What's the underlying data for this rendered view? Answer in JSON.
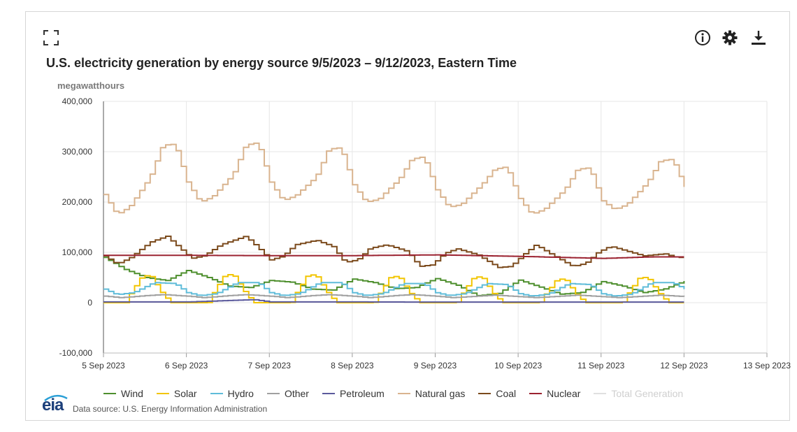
{
  "header": {
    "title": "U.S. electricity generation by energy source 9/5/2023 – 9/12/2023, Eastern Time",
    "units": "megawatthours",
    "icons": [
      "expand-icon",
      "info-icon",
      "gear-icon",
      "download-icon"
    ]
  },
  "footer": {
    "logo_text": "eia",
    "source": "Data source: U.S. Energy Information Administration"
  },
  "chart_data": {
    "type": "line",
    "step": true,
    "xlabel": "",
    "ylabel": "megawatthours",
    "ylim": [
      -100000,
      400000
    ],
    "yticks": [
      -100000,
      0,
      100000,
      200000,
      300000,
      400000
    ],
    "ytick_labels": [
      "-100,000",
      "0",
      "100,000",
      "200,000",
      "300,000",
      "400,000"
    ],
    "xlim_days": [
      0,
      8
    ],
    "xtick_labels": [
      "5 Sep 2023",
      "6 Sep 2023",
      "7 Sep 2023",
      "8 Sep 2023",
      "9 Sep 2023",
      "10 Sep 2023",
      "11 Sep 2023",
      "12 Sep 2023",
      "13 Sep 2023"
    ],
    "grid": true,
    "legend_position": "bottom",
    "series": [
      {
        "name": "Wind",
        "color": "#4e8f2e",
        "visible": true,
        "x": [
          0,
          0.25,
          0.5,
          0.75,
          1,
          1.25,
          1.5,
          1.75,
          2,
          2.25,
          2.5,
          2.75,
          3,
          3.25,
          3.5,
          3.75,
          4,
          4.25,
          4.5,
          4.75,
          5,
          5.25,
          5.5,
          5.75,
          6,
          6.25,
          6.5,
          6.75,
          7
        ],
        "y": [
          90000,
          66000,
          50000,
          44000,
          64000,
          50000,
          33000,
          30000,
          44000,
          41000,
          27000,
          25000,
          47000,
          40000,
          28000,
          30000,
          48000,
          35000,
          14000,
          18000,
          45000,
          31000,
          17000,
          20000,
          42000,
          33000,
          20000,
          27000,
          43000
        ]
      },
      {
        "name": "Solar",
        "color": "#f2c500",
        "visible": true,
        "x": [
          0,
          0.25,
          0.32,
          0.45,
          0.55,
          0.68,
          0.8,
          1,
          1.25,
          1.32,
          1.45,
          1.55,
          1.68,
          1.8,
          2,
          2.25,
          2.32,
          2.45,
          2.55,
          2.68,
          2.8,
          3,
          3.25,
          3.32,
          3.45,
          3.55,
          3.68,
          3.8,
          4,
          4.25,
          4.32,
          4.45,
          4.55,
          4.68,
          4.8,
          5,
          5.25,
          5.32,
          5.45,
          5.55,
          5.68,
          5.8,
          6,
          6.25,
          6.32,
          6.45,
          6.55,
          6.68,
          6.8,
          7
        ],
        "y": [
          0,
          0,
          20000,
          52000,
          55000,
          22000,
          0,
          0,
          0,
          22000,
          55000,
          56000,
          24000,
          0,
          0,
          0,
          22000,
          55000,
          55000,
          22000,
          0,
          0,
          0,
          20000,
          52000,
          52000,
          20000,
          0,
          0,
          0,
          20000,
          50000,
          52000,
          20000,
          0,
          0,
          0,
          18000,
          45000,
          48000,
          18000,
          0,
          0,
          0,
          20000,
          50000,
          50000,
          20000,
          0,
          0
        ]
      },
      {
        "name": "Hydro",
        "color": "#5fbcd9",
        "visible": true,
        "x": [
          0,
          0.15,
          0.35,
          0.6,
          0.85,
          1,
          1.15,
          1.35,
          1.6,
          1.85,
          2,
          2.15,
          2.35,
          2.6,
          2.85,
          3,
          3.15,
          3.35,
          3.6,
          3.85,
          4,
          4.15,
          4.35,
          4.6,
          4.85,
          5,
          5.15,
          5.35,
          5.6,
          5.85,
          6,
          6.15,
          6.35,
          6.6,
          6.85,
          7
        ],
        "y": [
          27000,
          16000,
          20000,
          40000,
          38000,
          20000,
          14000,
          18000,
          40000,
          40000,
          20000,
          14000,
          18000,
          40000,
          40000,
          20000,
          14000,
          18000,
          38000,
          38000,
          20000,
          14000,
          18000,
          38000,
          36000,
          18000,
          13000,
          17000,
          38000,
          36000,
          18000,
          13000,
          17000,
          40000,
          40000,
          27000
        ]
      },
      {
        "name": "Other",
        "color": "#a0a0a0",
        "visible": true,
        "x": [
          0,
          0.2,
          0.5,
          0.7,
          1,
          1.2,
          1.5,
          1.7,
          2,
          2.2,
          2.5,
          2.7,
          3,
          3.2,
          3.5,
          3.7,
          4,
          4.2,
          4.5,
          4.7,
          5,
          5.2,
          5.5,
          5.7,
          6,
          6.2,
          6.5,
          6.7,
          7
        ],
        "y": [
          13000,
          10000,
          14000,
          16000,
          13000,
          10000,
          14000,
          16000,
          13000,
          10000,
          14000,
          16000,
          13000,
          10000,
          14000,
          16000,
          13000,
          10000,
          13000,
          15000,
          12000,
          10000,
          13000,
          15000,
          12000,
          10000,
          13000,
          15000,
          12000
        ]
      },
      {
        "name": "Petroleum",
        "color": "#5b5a9c",
        "visible": true,
        "x": [
          0,
          1,
          1.8,
          2,
          3,
          4,
          5,
          6,
          7
        ],
        "y": [
          1500,
          1500,
          6000,
          1500,
          1500,
          1200,
          1200,
          1200,
          1200
        ]
      },
      {
        "name": "Natural gas",
        "color": "#d9b48f",
        "visible": true,
        "x": [
          0,
          0.15,
          0.3,
          0.55,
          0.7,
          0.85,
          1,
          1.15,
          1.3,
          1.55,
          1.7,
          1.85,
          2,
          2.15,
          2.3,
          2.55,
          2.7,
          2.85,
          3,
          3.15,
          3.3,
          3.55,
          3.7,
          3.85,
          4,
          4.15,
          4.3,
          4.55,
          4.7,
          4.85,
          5,
          5.15,
          5.3,
          5.55,
          5.7,
          5.85,
          6,
          6.15,
          6.3,
          6.55,
          6.7,
          6.85,
          7
        ],
        "y": [
          215000,
          175000,
          190000,
          250000,
          313000,
          315000,
          240000,
          200000,
          210000,
          255000,
          313000,
          318000,
          240000,
          203000,
          212000,
          250000,
          305000,
          308000,
          235000,
          200000,
          205000,
          245000,
          285000,
          290000,
          225000,
          190000,
          195000,
          235000,
          265000,
          270000,
          208000,
          176000,
          185000,
          225000,
          265000,
          268000,
          203000,
          185000,
          195000,
          240000,
          282000,
          285000,
          230000
        ]
      },
      {
        "name": "Coal",
        "color": "#7b4a1c",
        "visible": true,
        "x": [
          0,
          0.15,
          0.3,
          0.55,
          0.75,
          0.9,
          1.05,
          1.2,
          1.4,
          1.7,
          1.85,
          2,
          2.15,
          2.3,
          2.55,
          2.75,
          2.9,
          3.05,
          3.2,
          3.4,
          3.65,
          3.8,
          3.95,
          4.1,
          4.25,
          4.5,
          4.75,
          4.9,
          5.05,
          5.2,
          5.4,
          5.65,
          5.8,
          5.95,
          6.1,
          6.25,
          6.5,
          6.75,
          6.9,
          7
        ],
        "y": [
          93000,
          77000,
          88000,
          120000,
          132000,
          110000,
          88000,
          93000,
          115000,
          132000,
          110000,
          85000,
          92000,
          115000,
          124000,
          112000,
          80000,
          85000,
          108000,
          115000,
          102000,
          72000,
          75000,
          98000,
          107000,
          95000,
          70000,
          72000,
          95000,
          115000,
          95000,
          72000,
          78000,
          100000,
          112000,
          105000,
          93000,
          97000,
          90000,
          90000
        ]
      },
      {
        "name": "Nuclear",
        "color": "#9b2230",
        "visible": true,
        "x": [
          0,
          1,
          2,
          3,
          4,
          5,
          6,
          6.6,
          7
        ],
        "y": [
          94000,
          94000,
          93500,
          93500,
          95000,
          92000,
          88000,
          91000,
          91000
        ]
      },
      {
        "name": "Total Generation",
        "color": "#cccccc",
        "visible": false,
        "x": [],
        "y": []
      }
    ]
  }
}
